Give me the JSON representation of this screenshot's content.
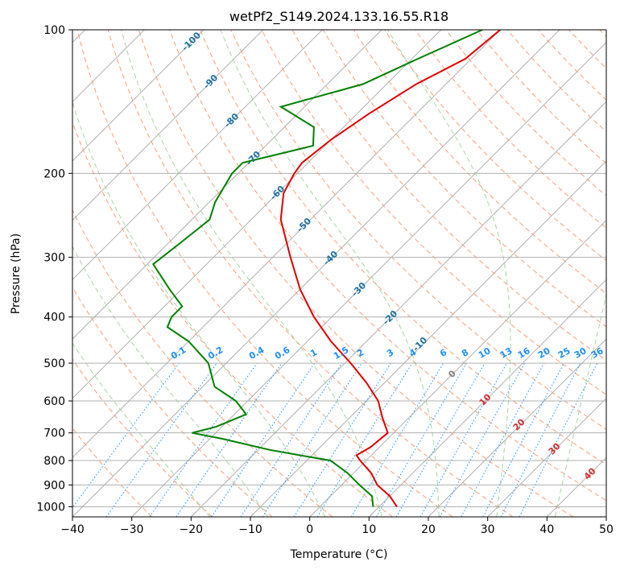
{
  "chart_data": {
    "type": "line",
    "title": "wetPf2_S149.2024.133.16.55.R18",
    "xlabel": "Temperature (°C)",
    "ylabel": "Pressure (hPa)",
    "xlim": [
      -40,
      50
    ],
    "ylim": [
      1050,
      100
    ],
    "y_scale": "log",
    "grid": true,
    "x_ticks": [
      -40,
      -30,
      -20,
      -10,
      0,
      10,
      20,
      30,
      40,
      50
    ],
    "y_ticks": [
      100,
      200,
      300,
      400,
      500,
      600,
      700,
      800,
      900,
      1000
    ],
    "series": [
      {
        "kind": "temperature",
        "color": "#e00000",
        "points": [
          [
            100,
            -50
          ],
          [
            115,
            -51
          ],
          [
            130,
            -55
          ],
          [
            150,
            -58
          ],
          [
            170,
            -60
          ],
          [
            190,
            -61
          ],
          [
            200,
            -60.5
          ],
          [
            220,
            -59
          ],
          [
            250,
            -55
          ],
          [
            300,
            -47
          ],
          [
            350,
            -40
          ],
          [
            400,
            -33
          ],
          [
            450,
            -26
          ],
          [
            500,
            -19
          ],
          [
            550,
            -13
          ],
          [
            600,
            -8
          ],
          [
            650,
            -4.5
          ],
          [
            700,
            -1
          ],
          [
            750,
            -1.5
          ],
          [
            780,
            -2.5
          ],
          [
            800,
            -1
          ],
          [
            850,
            3
          ],
          [
            900,
            6
          ],
          [
            950,
            10
          ],
          [
            1000,
            13
          ]
        ]
      },
      {
        "kind": "dewpoint",
        "color": "#008000",
        "points": [
          [
            100,
            -53
          ],
          [
            115,
            -59
          ],
          [
            130,
            -64
          ],
          [
            145,
            -74
          ],
          [
            160,
            -65
          ],
          [
            175,
            -62
          ],
          [
            190,
            -71
          ],
          [
            200,
            -71
          ],
          [
            230,
            -69
          ],
          [
            250,
            -67
          ],
          [
            280,
            -68
          ],
          [
            310,
            -69
          ],
          [
            350,
            -62
          ],
          [
            380,
            -57
          ],
          [
            400,
            -57
          ],
          [
            420,
            -56
          ],
          [
            450,
            -50
          ],
          [
            500,
            -43
          ],
          [
            560,
            -38
          ],
          [
            600,
            -32
          ],
          [
            640,
            -28
          ],
          [
            680,
            -31
          ],
          [
            700,
            -34
          ],
          [
            720,
            -28
          ],
          [
            760,
            -18
          ],
          [
            780,
            -12
          ],
          [
            800,
            -6
          ],
          [
            850,
            -1
          ],
          [
            900,
            3
          ],
          [
            950,
            7
          ],
          [
            1000,
            9
          ]
        ]
      }
    ],
    "dry_adiabat_labels": [
      "-100",
      "-90",
      "-80",
      "-70",
      "-60",
      "-50",
      "-40",
      "-30",
      "-20",
      "-10"
    ],
    "mixing_ratio_labels": [
      "0.1",
      "0.2",
      "0.4",
      "0.6",
      "1",
      "1.5",
      "2",
      "3",
      "4",
      "6",
      "8",
      "10",
      "13",
      "16",
      "20",
      "25",
      "30",
      "36"
    ],
    "moist_adiabat_labels": [
      "0",
      "10",
      "20",
      "30",
      "40"
    ]
  }
}
